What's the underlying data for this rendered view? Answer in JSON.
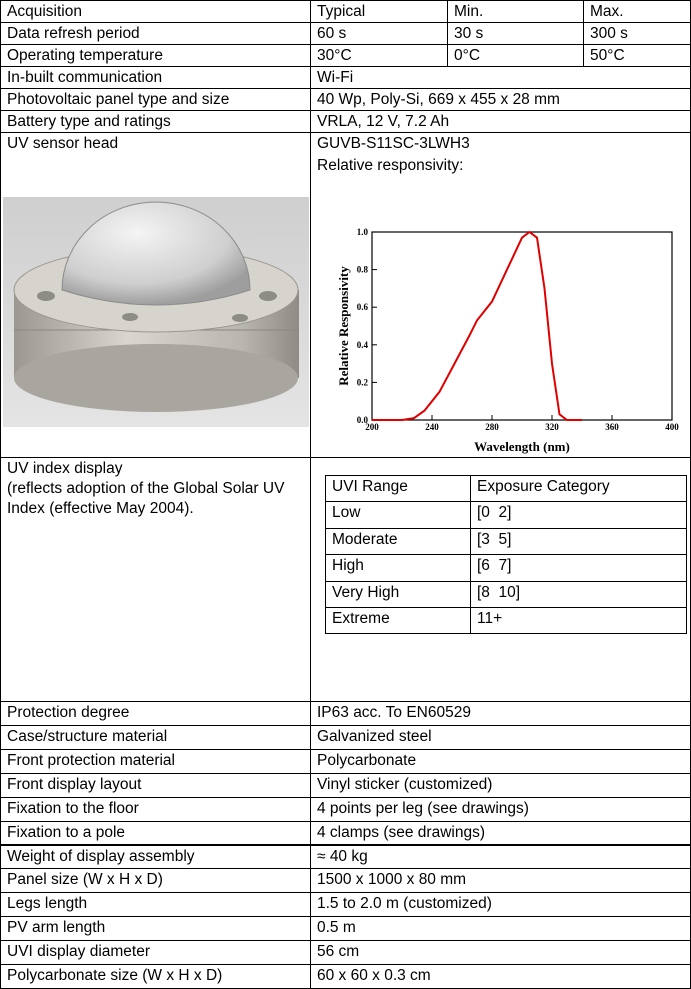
{
  "header": [
    "Acquisition",
    "Typical",
    "Min.",
    "Max."
  ],
  "rows_top": [
    [
      "Data refresh period",
      "60 s",
      "30 s",
      "300 s"
    ],
    [
      "Operating temperature",
      "30°C",
      "0°C",
      "50°C"
    ],
    [
      "In-built communication",
      "Wi-Fi"
    ],
    [
      "Photovoltaic panel type and size",
      "40 Wp, Poly-Si, 669 x 455 x 28 mm"
    ],
    [
      "Battery type and ratings",
      "VRLA, 12 V, 7.2 Ah"
    ]
  ],
  "sensor": {
    "label": "UV sensor head",
    "model": "GUVB-S11SC-3LWH3",
    "caption": "Relative responsivity:"
  },
  "chart_data": {
    "type": "line",
    "x_label": "Wavelength (nm)",
    "y_label": "Relative Responsivity",
    "x": [
      200,
      220,
      228,
      235,
      245,
      255,
      265,
      270,
      280,
      290,
      300,
      305,
      310,
      315,
      320,
      325,
      330,
      340
    ],
    "values": [
      0,
      0,
      0.01,
      0.05,
      0.15,
      0.3,
      0.45,
      0.53,
      0.63,
      0.8,
      0.97,
      1.0,
      0.97,
      0.7,
      0.3,
      0.03,
      0,
      0
    ],
    "color": "#e00000",
    "xlim": [
      200,
      400
    ],
    "xticks": [
      200,
      240,
      280,
      320,
      360,
      400
    ],
    "ylim": [
      0,
      1
    ],
    "yticks": [
      {
        "value": 0,
        "label": "0.0"
      },
      0.2,
      0.4,
      0.6,
      0.8,
      {
        "value": 1,
        "label": "1.0"
      }
    ]
  },
  "uvi": {
    "label": "UV index display",
    "note": "(reflects adoption of the Global Solar UV Index (effective May 2004).",
    "header": [
      "UVI Range",
      "Exposure Category"
    ],
    "rows": [
      [
        "Low",
        "[0  2]"
      ],
      [
        "Moderate",
        "[3  5]"
      ],
      [
        "High",
        "[6  7]"
      ],
      [
        "Very High",
        "[8  10]"
      ],
      [
        "Extreme",
        "11+"
      ]
    ]
  },
  "rows_bottom": [
    [
      "Protection degree",
      "IP63 acc. To EN60529"
    ],
    [
      "Case/structure material",
      "Galvanized steel"
    ],
    [
      "Front protection material",
      "Polycarbonate"
    ],
    [
      "Front display layout",
      "Vinyl sticker (customized)"
    ],
    [
      "Fixation to the floor",
      "4 points per leg (see drawings)"
    ],
    [
      "Fixation to a pole",
      "4 clamps (see drawings)"
    ],
    [
      "Weight of display assembly",
      "≈ 40 kg"
    ],
    [
      "Panel size (W x H x D)",
      "1500 x 1000 x 80 mm"
    ],
    [
      "Legs length",
      "1.5 to 2.0 m (customized)"
    ],
    [
      "PV arm length",
      "0.5 m"
    ],
    [
      "UVI display diameter",
      "56 cm"
    ],
    [
      "Polycarbonate size (W x H x D)",
      "60 x 60 x 0.3 cm"
    ]
  ]
}
